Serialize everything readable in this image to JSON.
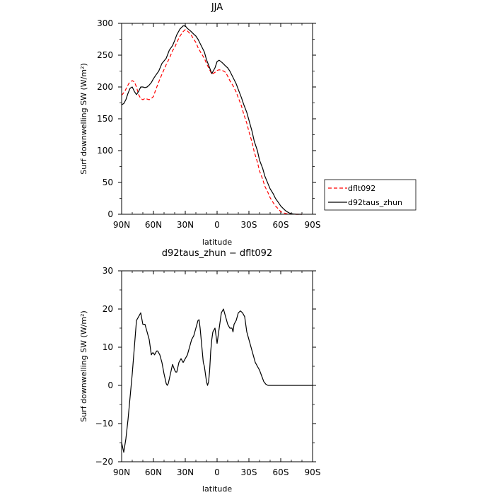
{
  "chart_data": [
    {
      "type": "line",
      "title": "JJA",
      "xlabel": "latitude",
      "ylabel": "Surf downwelling SW (W/m²)",
      "xlim": [
        90,
        -90
      ],
      "ylim": [
        0,
        300
      ],
      "x_ticks": [
        90,
        60,
        30,
        0,
        -30,
        -60,
        -90
      ],
      "x_tick_labels": [
        "90N",
        "60N",
        "30N",
        "0",
        "30S",
        "60S",
        "90S"
      ],
      "y_ticks": [
        0,
        50,
        100,
        150,
        200,
        250,
        300
      ],
      "y_tick_labels": [
        "0",
        "50",
        "100",
        "150",
        "200",
        "250",
        "300"
      ],
      "legend_position": "right",
      "series": [
        {
          "name": "dflt092",
          "color": "#ff0000",
          "dash": "dashed",
          "x": [
            90,
            87,
            85,
            83,
            80,
            78,
            76,
            74,
            72,
            70,
            68,
            66,
            64,
            62,
            60,
            58,
            55,
            52,
            48,
            45,
            42,
            40,
            38,
            35,
            32,
            30,
            28,
            25,
            22,
            20,
            18,
            15,
            12,
            10,
            7,
            5,
            2,
            0,
            -2,
            -5,
            -8,
            -10,
            -12,
            -15,
            -18,
            -20,
            -23,
            -25,
            -28,
            -30,
            -33,
            -35,
            -38,
            -40,
            -43,
            -45,
            -48,
            -50,
            -53,
            -55,
            -58,
            -60,
            -63,
            -65,
            -68,
            -70,
            -72,
            -75,
            -78,
            -80
          ],
          "y": [
            187,
            193,
            200,
            206,
            210,
            208,
            200,
            188,
            182,
            180,
            182,
            181,
            180,
            182,
            185,
            195,
            208,
            220,
            235,
            245,
            257,
            262,
            270,
            280,
            287,
            290,
            288,
            283,
            275,
            270,
            262,
            253,
            245,
            237,
            227,
            220,
            223,
            226,
            227,
            226,
            223,
            217,
            210,
            202,
            192,
            183,
            170,
            158,
            143,
            130,
            113,
            98,
            82,
            68,
            55,
            44,
            34,
            26,
            18,
            13,
            8,
            4,
            2,
            1,
            0.5,
            0.2,
            0,
            0,
            0,
            0
          ]
        },
        {
          "name": "d92taus_zhun",
          "color": "#000000",
          "dash": "solid",
          "x": [
            90,
            88,
            86,
            84,
            82,
            80,
            78,
            76,
            74,
            72,
            70,
            68,
            66,
            64,
            62,
            60,
            58,
            55,
            52,
            48,
            45,
            42,
            40,
            38,
            35,
            32,
            30,
            28,
            25,
            22,
            20,
            18,
            15,
            12,
            10,
            7,
            5,
            2,
            0,
            -2,
            -5,
            -8,
            -10,
            -12,
            -15,
            -18,
            -20,
            -23,
            -25,
            -28,
            -30,
            -33,
            -35,
            -38,
            -40,
            -43,
            -45,
            -48,
            -50,
            -53,
            -55,
            -58,
            -60,
            -63,
            -65,
            -68,
            -70,
            -72,
            -75,
            -78,
            -80
          ],
          "y": [
            172,
            174,
            180,
            190,
            198,
            200,
            193,
            188,
            193,
            200,
            200,
            199,
            200,
            203,
            207,
            213,
            218,
            225,
            237,
            245,
            258,
            265,
            273,
            282,
            291,
            296,
            296,
            292,
            288,
            283,
            280,
            275,
            265,
            255,
            243,
            230,
            221,
            230,
            240,
            242,
            238,
            233,
            230,
            225,
            215,
            205,
            196,
            183,
            173,
            160,
            148,
            130,
            115,
            100,
            85,
            72,
            60,
            48,
            40,
            32,
            25,
            18,
            13,
            8,
            5,
            2,
            1,
            0.5,
            0,
            0,
            0
          ]
        }
      ]
    },
    {
      "type": "line",
      "title": "d92taus_zhun − dflt092",
      "xlabel": "latitude",
      "ylabel": "Surf downwelling SW (W/m²)",
      "xlim": [
        90,
        -90
      ],
      "ylim": [
        -20,
        30
      ],
      "x_ticks": [
        90,
        60,
        30,
        0,
        -30,
        -60,
        -90
      ],
      "x_tick_labels": [
        "90N",
        "60N",
        "30N",
        "0",
        "30S",
        "60S",
        "90S"
      ],
      "y_ticks": [
        -20,
        -10,
        0,
        10,
        20,
        30
      ],
      "y_tick_labels": [
        "−20",
        "−10",
        "0",
        "10",
        "20",
        "30"
      ],
      "series": [
        {
          "color": "#000000",
          "dash": "solid",
          "x": [
            90,
            88,
            86,
            84,
            82,
            80,
            78,
            76,
            74,
            72,
            70,
            68,
            66,
            64,
            62,
            61,
            60,
            59,
            58,
            57,
            56,
            55,
            54,
            52,
            50,
            48,
            47,
            46,
            44,
            42,
            40,
            39,
            38,
            36,
            34,
            32,
            31,
            30,
            28,
            26,
            24,
            22,
            20,
            18,
            17,
            16,
            15,
            14,
            13,
            12,
            10,
            9,
            8,
            7,
            6,
            5,
            4,
            3,
            2,
            0,
            -2,
            -4,
            -5,
            -6,
            -8,
            -10,
            -12,
            -14,
            -15,
            -16,
            -18,
            -20,
            -22,
            -24,
            -26,
            -28,
            -30,
            -32,
            -34,
            -36,
            -38,
            -40,
            -42,
            -44,
            -46,
            -48,
            -50,
            -52,
            -54,
            -56,
            -58,
            -60,
            -62,
            -64,
            -66,
            -68,
            -70,
            -75,
            -80,
            -85,
            -90
          ],
          "y": [
            -15,
            -17.5,
            -14,
            -9,
            -3,
            3,
            10,
            17,
            18,
            19,
            16,
            16,
            14,
            12,
            8,
            8.5,
            8.5,
            8,
            8.5,
            9,
            9,
            8.5,
            8,
            6,
            3,
            0.5,
            0,
            0.5,
            3,
            5.5,
            4,
            3.5,
            3.5,
            6,
            7,
            6,
            6.5,
            7,
            8,
            10,
            12,
            13,
            15,
            17,
            17.2,
            15,
            12,
            9,
            6,
            5,
            1,
            0,
            1,
            4,
            9,
            12,
            14,
            14.5,
            15,
            11,
            15,
            19,
            19.5,
            20,
            18,
            16,
            15,
            15,
            14,
            16,
            17,
            19,
            19.5,
            19,
            18,
            14,
            12,
            10,
            8,
            6,
            5,
            4,
            2.5,
            1,
            0.3,
            0,
            0,
            0,
            0,
            0,
            0,
            0,
            0,
            0,
            0,
            0,
            0,
            0,
            0,
            0,
            0
          ]
        }
      ]
    }
  ]
}
